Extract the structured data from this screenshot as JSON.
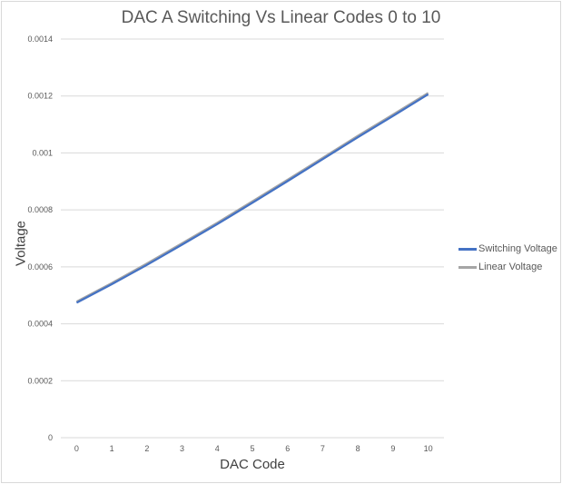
{
  "chart_data": {
    "type": "line",
    "title": "DAC A Switching Vs Linear Codes 0 to 10",
    "xlabel": "DAC Code",
    "ylabel": "Voltage",
    "x": [
      0,
      1,
      2,
      3,
      4,
      5,
      6,
      7,
      8,
      9,
      10
    ],
    "x_tick_labels": [
      "0",
      "1",
      "2",
      "3",
      "4",
      "5",
      "6",
      "7",
      "8",
      "9",
      "10"
    ],
    "y_tick_labels": [
      "0",
      "0.0002",
      "0.0004",
      "0.0006",
      "0.0008",
      "0.001",
      "0.0012",
      "0.0014"
    ],
    "y_ticks": [
      0,
      0.0002,
      0.0004,
      0.0006,
      0.0008,
      0.001,
      0.0012,
      0.0014
    ],
    "ylim": [
      0,
      0.0014
    ],
    "grid": "horizontal",
    "legend_position": "right",
    "series": [
      {
        "name": "Switching Voltage",
        "color": "#4472c4",
        "values": [
          0.000474,
          0.000539,
          0.000607,
          0.000678,
          0.00075,
          0.000825,
          0.000901,
          0.000978,
          0.001055,
          0.00113,
          0.001206
        ]
      },
      {
        "name": "Linear Voltage",
        "color": "#a5a5a5",
        "values": [
          0.000478,
          0.000543,
          0.000612,
          0.000683,
          0.000755,
          0.00083,
          0.000906,
          0.000983,
          0.00106,
          0.001135,
          0.001211
        ]
      }
    ]
  }
}
